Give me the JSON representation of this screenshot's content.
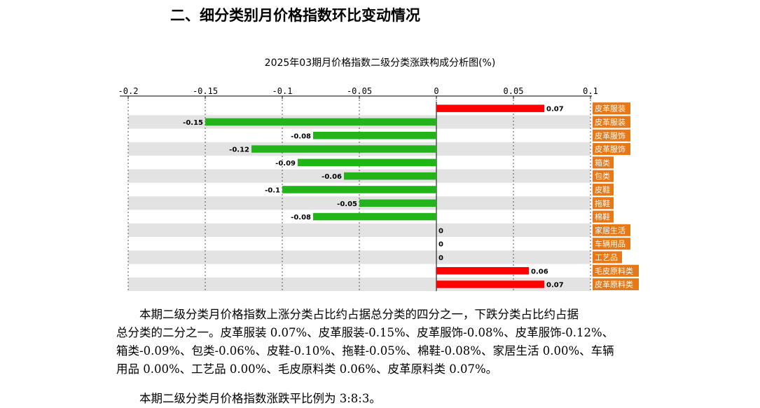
{
  "heading": "二、细分类别月价格指数环比变动情况",
  "chart_data": {
    "type": "bar",
    "orientation": "horizontal",
    "title": "2025年03期月价格指数二级分类涨跌构成分析图(%)",
    "xlim": [
      -0.2,
      0.1
    ],
    "x_ticks": [
      "-0.2",
      "-0.15",
      "-0.1",
      "-0.05",
      "0",
      "0.05",
      "0.1"
    ],
    "x_tick_values": [
      -0.2,
      -0.15,
      -0.1,
      -0.05,
      0,
      0.05,
      0.1
    ],
    "axis_position": "top",
    "grid": true,
    "categories": [
      "皮革服装",
      "皮革服装",
      "皮革服饰",
      "皮革服饰",
      "箱类",
      "包类",
      "皮鞋",
      "拖鞋",
      "棉鞋",
      "家居生活",
      "车辆用品",
      "工艺品",
      "毛皮原料类",
      "皮革原料类"
    ],
    "values": [
      0.07,
      -0.15,
      -0.08,
      -0.12,
      -0.09,
      -0.06,
      -0.1,
      -0.05,
      -0.08,
      0,
      0,
      0,
      0.06,
      0.07
    ],
    "value_labels": [
      "0.07",
      "-0.15",
      "-0.08",
      "-0.12",
      "-0.09",
      "-0.06",
      "-0.1",
      "-0.05",
      "-0.08",
      "0",
      "0",
      "0",
      "0.06",
      "0.07"
    ],
    "colors": {
      "positive": "#ff0000",
      "negative": "#22b418",
      "label_bg": "#e77817",
      "row_alt": "#e3e3e3"
    }
  },
  "paragraphs": {
    "summary_lines": [
      "本期二级分类月价格指数上涨分类占比约占据总分类的四分之一，下跌分类占比约占据",
      "总分类的二分之一。皮革服装 0.07%、皮革服装-0.15%、皮革服饰-0.08%、皮革服饰-0.12%、",
      "箱类-0.09%、包类-0.06%、皮鞋-0.10%、拖鞋-0.05%、棉鞋-0.08%、家居生活 0.00%、车辆",
      "用品 0.00%、工艺品 0.00%、毛皮原料类 0.06%、皮革原料类 0.07%。"
    ],
    "ratio_line": "本期二级分类月价格指数涨跌平比例为 3:8:3。"
  }
}
